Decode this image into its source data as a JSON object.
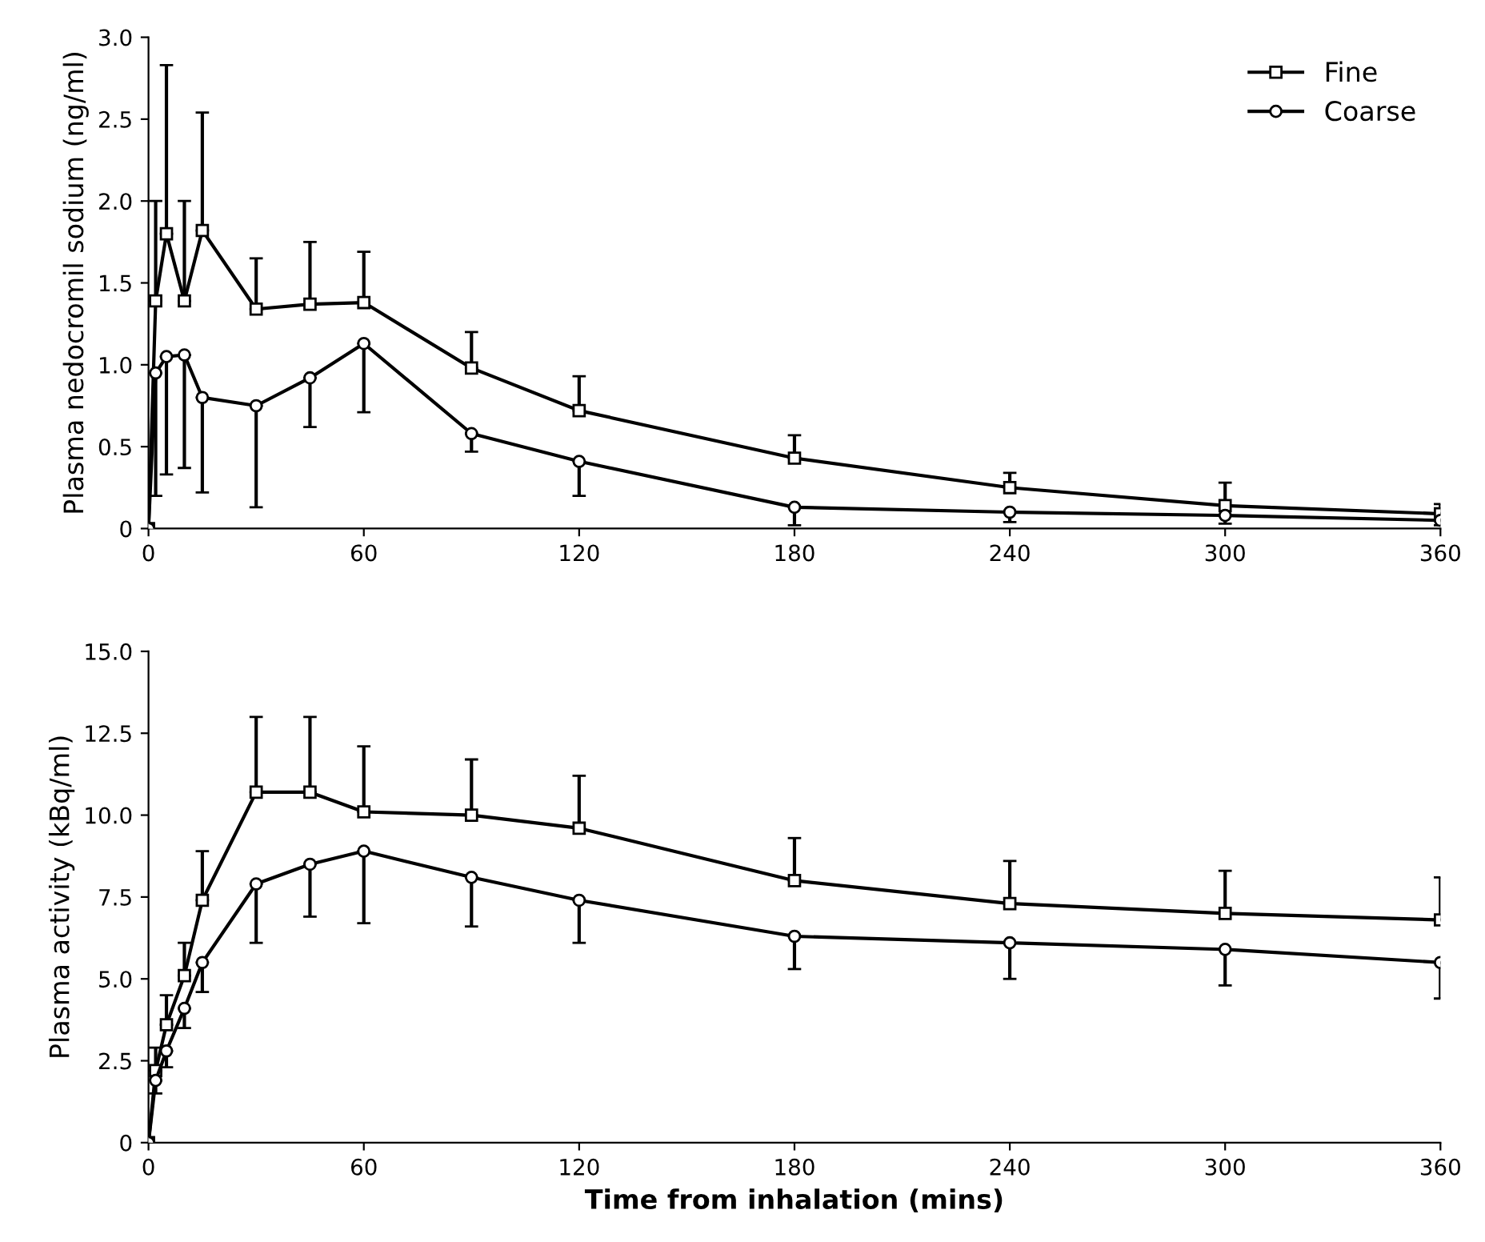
{
  "chart_data": [
    {
      "type": "line",
      "ylabel": "Plasma nedocromil sodium (ng/ml)",
      "xlim": [
        0,
        360
      ],
      "xticks": [
        0,
        60,
        120,
        180,
        240,
        300,
        360
      ],
      "ylim": [
        0,
        3.0
      ],
      "yticks": [
        0,
        {
          "value": 0.5,
          "label": "0.5"
        },
        {
          "value": 1.0,
          "label": "1.0"
        },
        {
          "value": 1.5,
          "label": "1.5"
        },
        {
          "value": 2.0,
          "label": "2.0"
        },
        {
          "value": 2.5,
          "label": "2.5"
        },
        {
          "value": 3.0,
          "label": "3.0"
        }
      ],
      "grid": false,
      "legend": "top right",
      "line_style": "solid",
      "x": [
        0,
        2,
        5,
        10,
        15,
        30,
        45,
        60,
        90,
        120,
        180,
        240,
        300,
        360
      ],
      "series": [
        {
          "name": "Fine",
          "color": "#000000",
          "marker": "square",
          "values": [
            0,
            1.39,
            1.8,
            1.39,
            1.82,
            1.34,
            1.37,
            1.38,
            0.98,
            0.72,
            0.43,
            0.25,
            0.14,
            0.09
          ],
          "errors": [
            null,
            [
              1.39,
              2.0
            ],
            [
              1.8,
              2.83
            ],
            [
              1.39,
              2.0
            ],
            [
              1.82,
              2.54
            ],
            [
              1.34,
              1.65
            ],
            [
              1.37,
              1.75
            ],
            [
              1.38,
              1.69
            ],
            [
              0.98,
              1.2
            ],
            [
              0.72,
              0.93
            ],
            [
              0.43,
              0.57
            ],
            [
              0.25,
              0.34
            ],
            [
              0.14,
              0.28
            ],
            [
              0.09,
              0.15
            ]
          ]
        },
        {
          "name": "Coarse",
          "color": "#000000",
          "marker": "circle",
          "values": [
            0,
            0.95,
            1.05,
            1.06,
            0.8,
            0.75,
            0.92,
            1.13,
            0.58,
            0.41,
            0.13,
            0.1,
            0.08,
            0.05
          ],
          "errors": [
            null,
            [
              0.2,
              0.95
            ],
            [
              0.33,
              1.05
            ],
            [
              0.37,
              1.06
            ],
            [
              0.22,
              0.8
            ],
            [
              0.13,
              0.75
            ],
            [
              0.62,
              0.92
            ],
            [
              0.71,
              1.13
            ],
            [
              0.47,
              0.58
            ],
            [
              0.2,
              0.41
            ],
            [
              0.02,
              0.13
            ],
            [
              0.04,
              0.1
            ],
            [
              0.03,
              0.08
            ],
            [
              0.02,
              0.05
            ]
          ]
        }
      ]
    },
    {
      "type": "line",
      "xlabel": "Time from inhalation (mins)",
      "ylabel": "Plasma activity (kBq/ml)",
      "xlim": [
        0,
        360
      ],
      "xticks": [
        0,
        60,
        120,
        180,
        240,
        300,
        360
      ],
      "ylim": [
        0,
        15.0
      ],
      "yticks": [
        0,
        {
          "value": 2.5,
          "label": "2.5"
        },
        {
          "value": 5.0,
          "label": "5.0"
        },
        {
          "value": 7.5,
          "label": "7.5"
        },
        {
          "value": 10.0,
          "label": "10.0"
        },
        {
          "value": 12.5,
          "label": "12.5"
        },
        {
          "value": 15.0,
          "label": "15.0"
        }
      ],
      "grid": false,
      "line_style": "solid",
      "x": [
        0,
        2,
        5,
        10,
        15,
        30,
        45,
        60,
        90,
        120,
        180,
        240,
        300,
        360
      ],
      "series": [
        {
          "color": "#000000",
          "marker": "square",
          "values": [
            0,
            2.2,
            3.6,
            5.1,
            7.4,
            10.7,
            10.7,
            10.1,
            10.0,
            9.6,
            8.0,
            7.3,
            7.0,
            6.8
          ],
          "errors": [
            null,
            [
              2.2,
              2.9
            ],
            [
              3.6,
              4.5
            ],
            [
              5.1,
              6.1
            ],
            [
              7.4,
              8.9
            ],
            [
              10.7,
              13.0
            ],
            [
              10.7,
              13.0
            ],
            [
              10.1,
              12.1
            ],
            [
              10.0,
              11.7
            ],
            [
              9.6,
              11.2
            ],
            [
              8.0,
              9.3
            ],
            [
              7.3,
              8.6
            ],
            [
              7.0,
              8.3
            ],
            [
              6.8,
              8.1
            ]
          ]
        },
        {
          "color": "#000000",
          "marker": "circle",
          "values": [
            0,
            1.9,
            2.8,
            4.1,
            5.5,
            7.9,
            8.5,
            8.9,
            8.1,
            7.4,
            6.3,
            6.1,
            5.9,
            5.5
          ],
          "errors": [
            null,
            [
              1.5,
              1.9
            ],
            [
              2.3,
              2.8
            ],
            [
              3.5,
              4.1
            ],
            [
              4.6,
              5.5
            ],
            [
              6.1,
              7.9
            ],
            [
              6.9,
              8.5
            ],
            [
              6.7,
              8.9
            ],
            [
              6.6,
              8.1
            ],
            [
              6.1,
              7.4
            ],
            [
              5.3,
              6.3
            ],
            [
              5.0,
              6.1
            ],
            [
              4.8,
              5.9
            ],
            [
              4.4,
              5.5
            ]
          ]
        }
      ]
    }
  ]
}
